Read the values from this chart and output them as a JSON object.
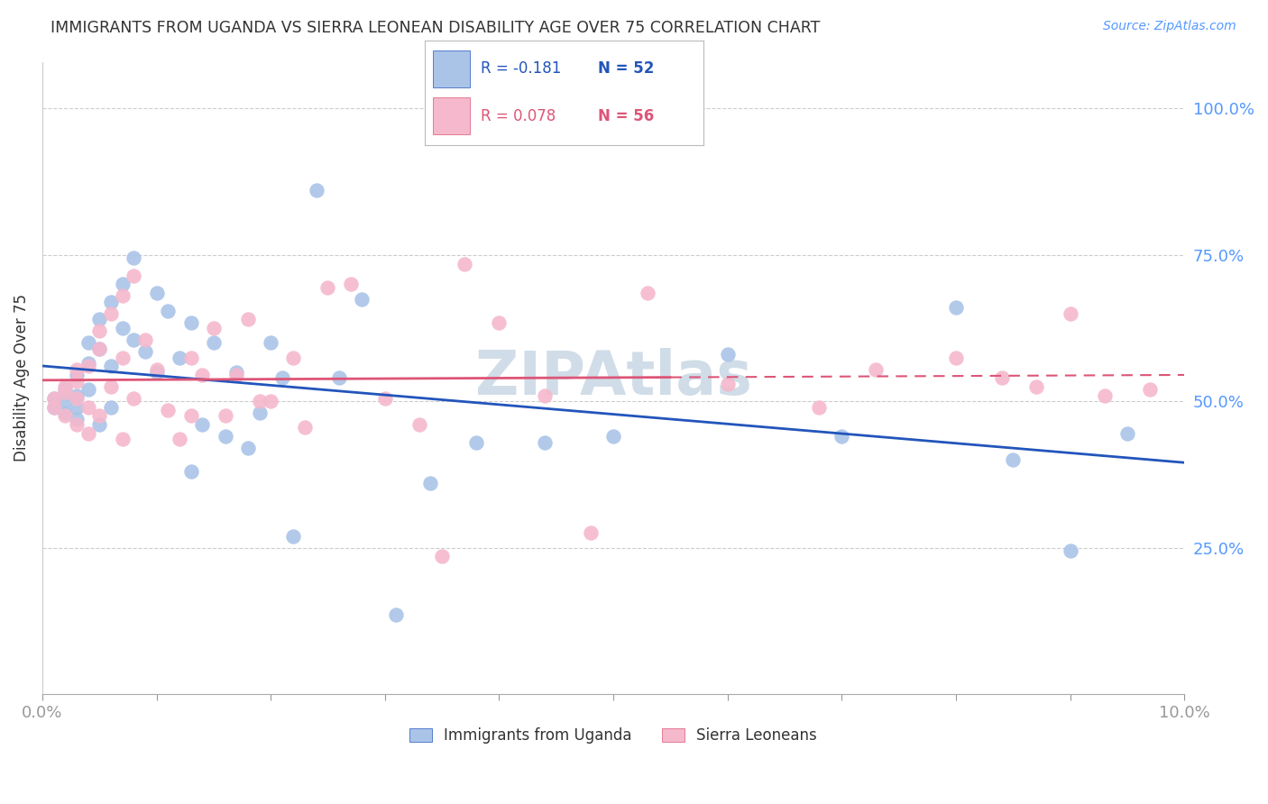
{
  "title": "IMMIGRANTS FROM UGANDA VS SIERRA LEONEAN DISABILITY AGE OVER 75 CORRELATION CHART",
  "source": "Source: ZipAtlas.com",
  "ylabel": "Disability Age Over 75",
  "legend_label1": "Immigrants from Uganda",
  "legend_label2": "Sierra Leoneans",
  "r1": -0.181,
  "n1": 52,
  "r2": 0.078,
  "n2": 56,
  "xlim": [
    0.0,
    0.1
  ],
  "ylim": [
    0.0,
    1.08
  ],
  "yticks": [
    0.25,
    0.5,
    0.75,
    1.0
  ],
  "ytick_labels": [
    "25.0%",
    "50.0%",
    "75.0%",
    "100.0%"
  ],
  "color_blue": "#aac4e8",
  "color_pink": "#f5b8cc",
  "line_blue": "#2255bb",
  "line_pink": "#dd5577",
  "background": "#ffffff",
  "grid_color": "#cccccc",
  "title_color": "#333333",
  "axis_label_color": "#5599ff",
  "watermark_color": "#d0dde8",
  "uganda_x": [
    0.001,
    0.001,
    0.002,
    0.002,
    0.002,
    0.003,
    0.003,
    0.003,
    0.003,
    0.004,
    0.004,
    0.004,
    0.005,
    0.005,
    0.005,
    0.006,
    0.006,
    0.006,
    0.007,
    0.007,
    0.008,
    0.008,
    0.009,
    0.01,
    0.01,
    0.011,
    0.012,
    0.013,
    0.013,
    0.014,
    0.015,
    0.016,
    0.017,
    0.018,
    0.019,
    0.02,
    0.021,
    0.022,
    0.024,
    0.026,
    0.028,
    0.031,
    0.034,
    0.038,
    0.044,
    0.05,
    0.06,
    0.07,
    0.08,
    0.085,
    0.09,
    0.095
  ],
  "uganda_y": [
    0.505,
    0.49,
    0.52,
    0.5,
    0.48,
    0.545,
    0.51,
    0.47,
    0.49,
    0.6,
    0.565,
    0.52,
    0.64,
    0.59,
    0.46,
    0.67,
    0.56,
    0.49,
    0.7,
    0.625,
    0.745,
    0.605,
    0.585,
    0.685,
    0.55,
    0.655,
    0.575,
    0.635,
    0.38,
    0.46,
    0.6,
    0.44,
    0.55,
    0.42,
    0.48,
    0.6,
    0.54,
    0.27,
    0.86,
    0.54,
    0.675,
    0.135,
    0.36,
    0.43,
    0.43,
    0.44,
    0.58,
    0.44,
    0.66,
    0.4,
    0.245,
    0.445
  ],
  "sierra_x": [
    0.001,
    0.001,
    0.002,
    0.002,
    0.002,
    0.003,
    0.003,
    0.003,
    0.003,
    0.004,
    0.004,
    0.004,
    0.005,
    0.005,
    0.005,
    0.006,
    0.006,
    0.007,
    0.007,
    0.007,
    0.008,
    0.008,
    0.009,
    0.01,
    0.011,
    0.012,
    0.013,
    0.013,
    0.014,
    0.015,
    0.016,
    0.017,
    0.018,
    0.019,
    0.02,
    0.022,
    0.023,
    0.025,
    0.027,
    0.03,
    0.033,
    0.035,
    0.037,
    0.04,
    0.044,
    0.048,
    0.053,
    0.06,
    0.068,
    0.073,
    0.08,
    0.084,
    0.087,
    0.09,
    0.093,
    0.097
  ],
  "sierra_y": [
    0.505,
    0.49,
    0.525,
    0.475,
    0.515,
    0.555,
    0.505,
    0.46,
    0.535,
    0.56,
    0.49,
    0.445,
    0.62,
    0.59,
    0.475,
    0.65,
    0.525,
    0.68,
    0.575,
    0.435,
    0.715,
    0.505,
    0.605,
    0.555,
    0.485,
    0.435,
    0.575,
    0.475,
    0.545,
    0.625,
    0.475,
    0.545,
    0.64,
    0.5,
    0.5,
    0.575,
    0.455,
    0.695,
    0.7,
    0.505,
    0.46,
    0.235,
    0.735,
    0.635,
    0.51,
    0.275,
    0.685,
    0.53,
    0.49,
    0.555,
    0.575,
    0.54,
    0.525,
    0.65,
    0.51,
    0.52
  ]
}
